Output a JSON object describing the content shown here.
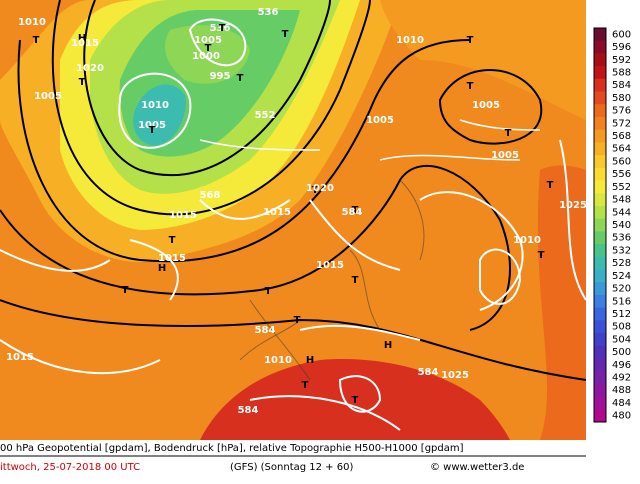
{
  "legend": {
    "levels": [
      600,
      596,
      592,
      588,
      584,
      580,
      576,
      572,
      568,
      564,
      560,
      556,
      552,
      548,
      544,
      540,
      536,
      532,
      528,
      524,
      520,
      516,
      512,
      508,
      504,
      500,
      496,
      492,
      488,
      484,
      480
    ],
    "colors": [
      "#6a0d2e",
      "#8b0a2a",
      "#a50f15",
      "#c0141a",
      "#d7301f",
      "#e34a20",
      "#ec6a1c",
      "#f08020",
      "#f49a20",
      "#f7b026",
      "#f9c82a",
      "#fadc30",
      "#f5ea3a",
      "#d8e840",
      "#b4e04a",
      "#8ed655",
      "#66cc66",
      "#48c48a",
      "#3cbcae",
      "#3ab0c8",
      "#3a9ad8",
      "#3a80e0",
      "#3a66e0",
      "#3a50d8",
      "#4040c8",
      "#5030b8",
      "#6428b0",
      "#7820a8",
      "#8c18a0",
      "#a01098",
      "#b0088c"
    ]
  },
  "caption": {
    "line1": "00 hPa Geopotential [gpdam], Bodendruck [hPa], relative Topographie H500-H1000 [gpdam]",
    "date": "ittwoch, 25-07-2018  00 UTC",
    "model": "(GFS)  (Sonntag 12 + 60)",
    "credit": "© www.wetter3.de"
  },
  "labels": [
    "1010",
    "T",
    "H",
    "1015",
    "1020",
    "T",
    "1005",
    "536",
    "1005",
    "T",
    "T",
    "1000",
    "536",
    "995",
    "T",
    "T",
    "552",
    "1010",
    "1005",
    "T",
    "568",
    "1015",
    "T",
    "1015",
    "H",
    "T",
    "1015",
    "T",
    "1020",
    "584",
    "1015",
    "T",
    "T",
    "T",
    "584",
    "T",
    "1010",
    "H",
    "T",
    "H",
    "584",
    "1025",
    "1015",
    "584",
    "T",
    "1010",
    "T",
    "1005",
    "T",
    "1005",
    "T",
    "1005",
    "T",
    "1025",
    "1010",
    "T"
  ]
}
